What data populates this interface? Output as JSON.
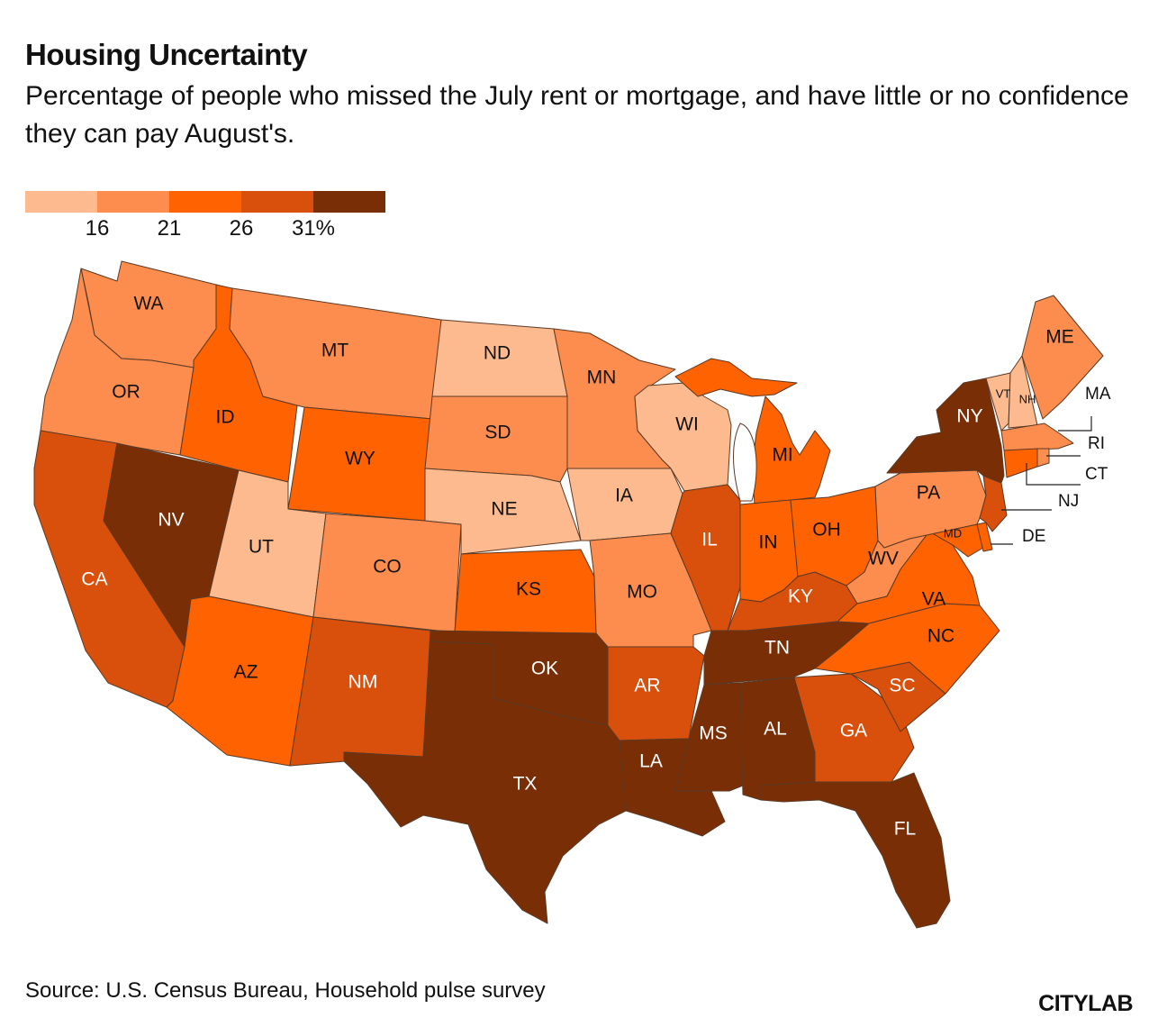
{
  "title": "Housing Uncertainty",
  "subtitle": "Percentage of people who missed the July rent or mortgage, and have little or no confidence they can pay August's.",
  "legend": {
    "colors": [
      "#fdba8f",
      "#fc8d4e",
      "#ff6200",
      "#d94f0c",
      "#7a2e06"
    ],
    "ticks": [
      "16",
      "21",
      "26",
      "31%"
    ]
  },
  "states": {
    "WA": {
      "label": "WA",
      "bin": 1
    },
    "OR": {
      "label": "OR",
      "bin": 1
    },
    "CA": {
      "label": "CA",
      "bin": 3
    },
    "NV": {
      "label": "NV",
      "bin": 4
    },
    "ID": {
      "label": "ID",
      "bin": 2
    },
    "MT": {
      "label": "MT",
      "bin": 1
    },
    "WY": {
      "label": "WY",
      "bin": 2
    },
    "UT": {
      "label": "UT",
      "bin": 0
    },
    "AZ": {
      "label": "AZ",
      "bin": 2
    },
    "CO": {
      "label": "CO",
      "bin": 1
    },
    "NM": {
      "label": "NM",
      "bin": 3
    },
    "ND": {
      "label": "ND",
      "bin": 0
    },
    "SD": {
      "label": "SD",
      "bin": 1
    },
    "NE": {
      "label": "NE",
      "bin": 0
    },
    "KS": {
      "label": "KS",
      "bin": 2
    },
    "OK": {
      "label": "OK",
      "bin": 4
    },
    "TX": {
      "label": "TX",
      "bin": 4
    },
    "MN": {
      "label": "MN",
      "bin": 1
    },
    "IA": {
      "label": "IA",
      "bin": 0
    },
    "MO": {
      "label": "MO",
      "bin": 1
    },
    "AR": {
      "label": "AR",
      "bin": 3
    },
    "LA": {
      "label": "LA",
      "bin": 4
    },
    "WI": {
      "label": "WI",
      "bin": 0
    },
    "IL": {
      "label": "IL",
      "bin": 3
    },
    "MI": {
      "label": "MI",
      "bin": 2
    },
    "IN": {
      "label": "IN",
      "bin": 2
    },
    "OH": {
      "label": "OH",
      "bin": 2
    },
    "KY": {
      "label": "KY",
      "bin": 3
    },
    "TN": {
      "label": "TN",
      "bin": 4
    },
    "MS": {
      "label": "MS",
      "bin": 4
    },
    "AL": {
      "label": "AL",
      "bin": 4
    },
    "GA": {
      "label": "GA",
      "bin": 3
    },
    "FL": {
      "label": "FL",
      "bin": 4
    },
    "SC": {
      "label": "SC",
      "bin": 3
    },
    "NC": {
      "label": "NC",
      "bin": 2
    },
    "VA": {
      "label": "VA",
      "bin": 2
    },
    "WV": {
      "label": "WV",
      "bin": 1
    },
    "MD": {
      "label": "MD",
      "bin": 2
    },
    "DE": {
      "label": "DE",
      "bin": 2
    },
    "PA": {
      "label": "PA",
      "bin": 1
    },
    "NJ": {
      "label": "NJ",
      "bin": 3
    },
    "NY": {
      "label": "NY",
      "bin": 4
    },
    "CT": {
      "label": "CT",
      "bin": 2
    },
    "RI": {
      "label": "RI",
      "bin": 1
    },
    "MA": {
      "label": "MA",
      "bin": 1
    },
    "VT": {
      "label": "VT",
      "bin": 0
    },
    "NH": {
      "label": "NH",
      "bin": 0
    },
    "ME": {
      "label": "ME",
      "bin": 1
    }
  },
  "source": "Source: U.S. Census Bureau, Household pulse survey",
  "brand": "CITYLAB"
}
